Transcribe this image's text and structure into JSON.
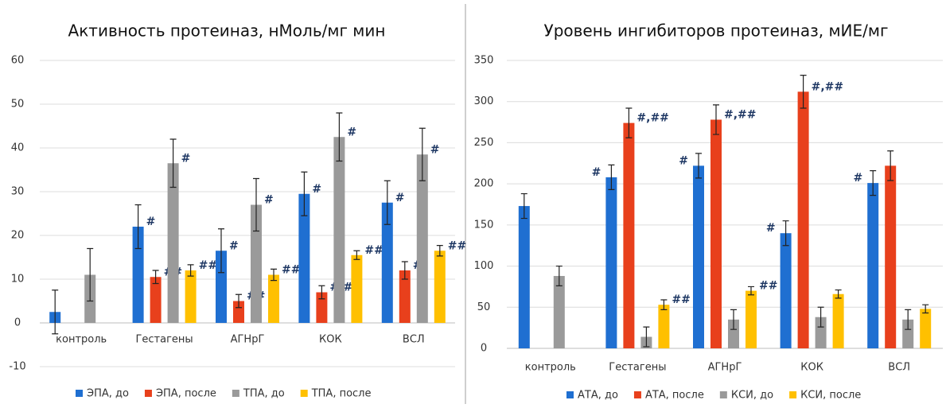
{
  "chart_data": [
    {
      "type": "bar",
      "title": "Активность протеиназ, нМоль/мг мин",
      "categories": [
        "контроль",
        "Гестагены",
        "АГНрГ",
        "КОК",
        "ВСЛ"
      ],
      "ylim": [
        -10,
        60
      ],
      "yticks": [
        -10,
        0,
        10,
        20,
        30,
        40,
        50,
        60
      ],
      "grid": true,
      "legend": "bottom",
      "series": [
        {
          "name": "ЭПА, до",
          "color": "#1f6fd1",
          "values": [
            2.5,
            22,
            16.5,
            29.5,
            27.5
          ],
          "errors": [
            5,
            5,
            5,
            5,
            5
          ],
          "annotations": [
            null,
            "#",
            "#",
            "#",
            "#"
          ]
        },
        {
          "name": "ЭПА, после",
          "color": "#e8401c",
          "values": [
            null,
            10.5,
            5,
            7,
            12
          ],
          "errors": [
            null,
            1.5,
            1.5,
            1.5,
            2
          ],
          "annotations": [
            null,
            "##",
            "##",
            "#,##",
            "#"
          ]
        },
        {
          "name": "ТПА, до",
          "color": "#9a9a9a",
          "values": [
            11,
            36.5,
            27,
            42.5,
            38.5
          ],
          "errors": [
            6,
            5.5,
            6,
            5.5,
            6
          ],
          "annotations": [
            null,
            "#",
            "#",
            "#",
            "#"
          ]
        },
        {
          "name": "ТПА, после",
          "color": "#ffc000",
          "values": [
            null,
            12,
            11,
            15.5,
            16.5
          ],
          "errors": [
            null,
            1.3,
            1.3,
            1,
            1.2
          ],
          "annotations": [
            null,
            "##",
            "##",
            "##",
            "##"
          ]
        }
      ]
    },
    {
      "type": "bar",
      "title": "Уровень ингибиторов протеиназ, мИЕ/мг",
      "categories": [
        "контроль",
        "Гестагены",
        "АГНрГ",
        "КОК",
        "ВСЛ"
      ],
      "ylim": [
        0,
        350
      ],
      "yticks": [
        0,
        50,
        100,
        150,
        200,
        250,
        300,
        350
      ],
      "grid": true,
      "legend": "bottom",
      "series": [
        {
          "name": "АТА, до",
          "color": "#1f6fd1",
          "values": [
            173,
            208,
            222,
            140,
            201
          ],
          "errors": [
            15,
            15,
            15,
            15,
            15
          ],
          "annotations": [
            null,
            "#",
            "#",
            "#",
            "#"
          ]
        },
        {
          "name": "АТА, после",
          "color": "#e8401c",
          "values": [
            null,
            274,
            278,
            312,
            222
          ],
          "errors": [
            null,
            18,
            18,
            20,
            18
          ],
          "annotations": [
            null,
            "#,##",
            "#,##",
            "#,##",
            null
          ]
        },
        {
          "name": "КСИ, до",
          "color": "#9a9a9a",
          "values": [
            88,
            14,
            35,
            38,
            35
          ],
          "errors": [
            12,
            12,
            12,
            12,
            12
          ],
          "annotations": [
            null,
            null,
            null,
            null,
            null
          ]
        },
        {
          "name": "КСИ, после",
          "color": "#ffc000",
          "values": [
            null,
            53,
            70,
            66,
            48
          ],
          "errors": [
            null,
            6,
            5,
            5,
            5
          ],
          "annotations": [
            null,
            "##",
            "##",
            null,
            null
          ]
        }
      ]
    }
  ]
}
